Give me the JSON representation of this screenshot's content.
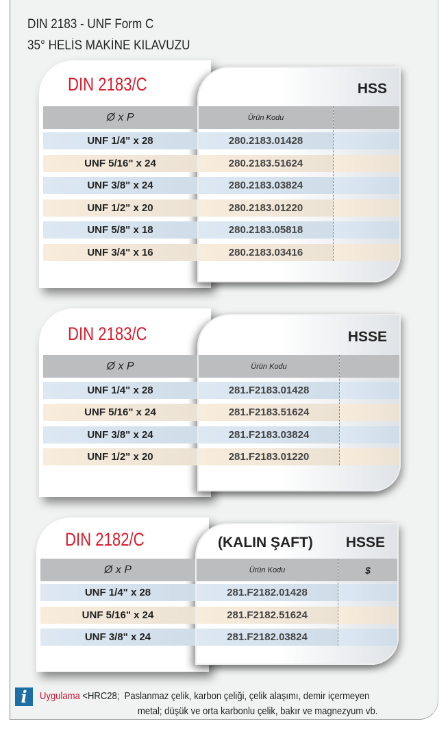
{
  "header": {
    "title": "DIN 2183 - UNF  Form C",
    "subtitle": "35° HELİS MAKİNE KILAVUZU"
  },
  "tables": [
    {
      "standard": "DIN 2183/C",
      "grade": "HSS",
      "col1": "Ø  x  P",
      "col2": "Ürün Kodu",
      "col3": "",
      "rows": [
        [
          "UNF 1/4\" x 28",
          "280.2183.01428"
        ],
        [
          "UNF 5/16\" x 24",
          "280.2183.51624"
        ],
        [
          "UNF 3/8\" x 24",
          "280.2183.03824"
        ],
        [
          "UNF 1/2\" x 20",
          "280.2183.01220"
        ],
        [
          "UNF 5/8\" x 18",
          "280.2183.05818"
        ],
        [
          "UNF 3/4\" x 16",
          "280.2183.03416"
        ]
      ]
    },
    {
      "standard": "DIN 2183/C",
      "grade": "HSSE",
      "col1": "Ø  x  P",
      "col2": "Ürün Kodu",
      "col3": "",
      "rows": [
        [
          "UNF 1/4\" x 28",
          "281.F2183.01428"
        ],
        [
          "UNF 5/16\" x 24",
          "281.F2183.51624"
        ],
        [
          "UNF 3/8\" x 24",
          "281.F2183.03824"
        ],
        [
          "UNF 1/2\" x 20",
          "281.F2183.01220"
        ]
      ]
    },
    {
      "standard": "DIN 2182/C",
      "note": "(KALIN ŞAFT)",
      "grade": "HSSE",
      "col1": "Ø  x  P",
      "col2": "Ürün Kodu",
      "col3": "$",
      "rows": [
        [
          "UNF 1/4\" x 28",
          "281.F2182.01428"
        ],
        [
          "UNF 5/16\" x 24",
          "281.F2182.51624"
        ],
        [
          "UNF 3/8\" x 24",
          "281.F2182.03824"
        ]
      ]
    }
  ],
  "footer": {
    "icon": "info-icon",
    "label": "Uygulama",
    "condition": "<HRC28;",
    "line1": "Paslanmaz çelik, karbon çeliği, çelik alaşımı, demir içermeyen",
    "line2": "metal; düşük ve orta karbonlu çelik, bakır ve magnezyum vb.",
    "label_color": "#c8102e"
  }
}
